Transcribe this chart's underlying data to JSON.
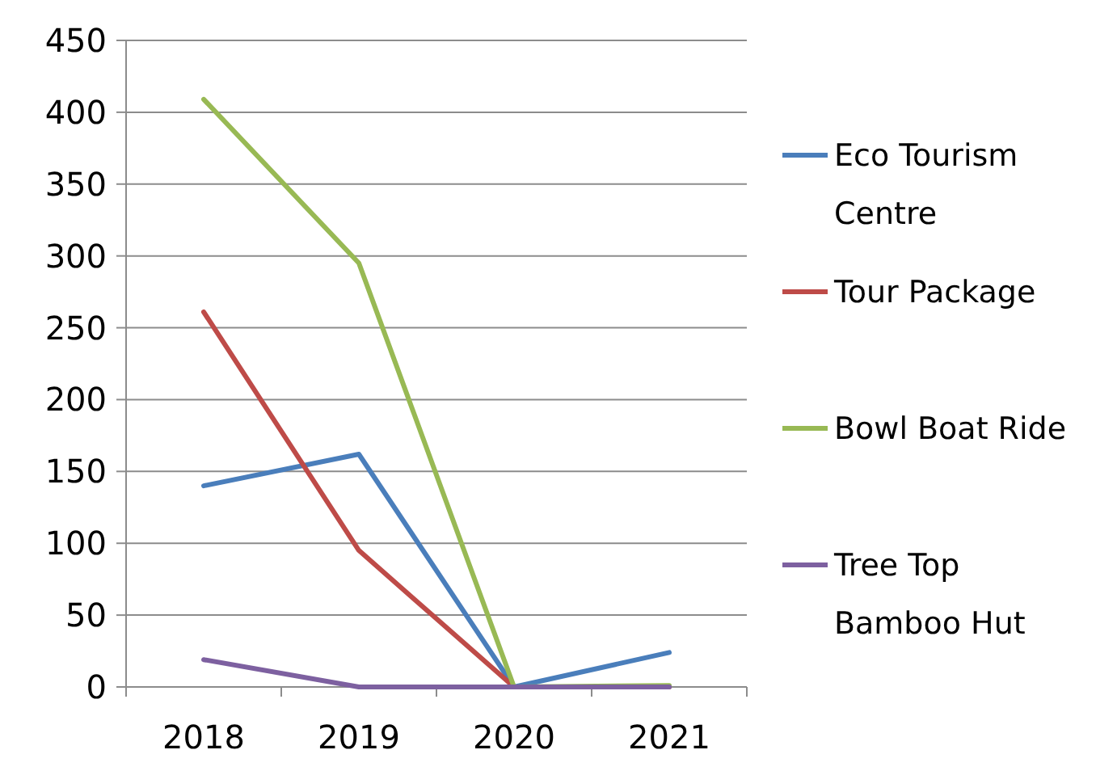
{
  "chart_data": {
    "type": "line",
    "categories": [
      "2018",
      "2019",
      "2020",
      "2021"
    ],
    "series": [
      {
        "name": "Eco Tourism Centre",
        "color": "#4a7ebb",
        "values": [
          140,
          162,
          0,
          24
        ]
      },
      {
        "name": "Tour Package",
        "color": "#be4b48",
        "values": [
          261,
          95,
          0,
          0
        ]
      },
      {
        "name": "Bowl Boat Ride",
        "color": "#98b954",
        "values": [
          409,
          295,
          0,
          1
        ]
      },
      {
        "name": "Tree Top Bamboo Hut",
        "color": "#7d60a0",
        "values": [
          19,
          0,
          0,
          0
        ]
      }
    ],
    "ylim": [
      0,
      450
    ],
    "yticks": [
      0,
      50,
      100,
      150,
      200,
      250,
      300,
      350,
      400,
      450
    ],
    "grid": "y",
    "legend": "right",
    "marker": "none",
    "line_style": "solid"
  }
}
